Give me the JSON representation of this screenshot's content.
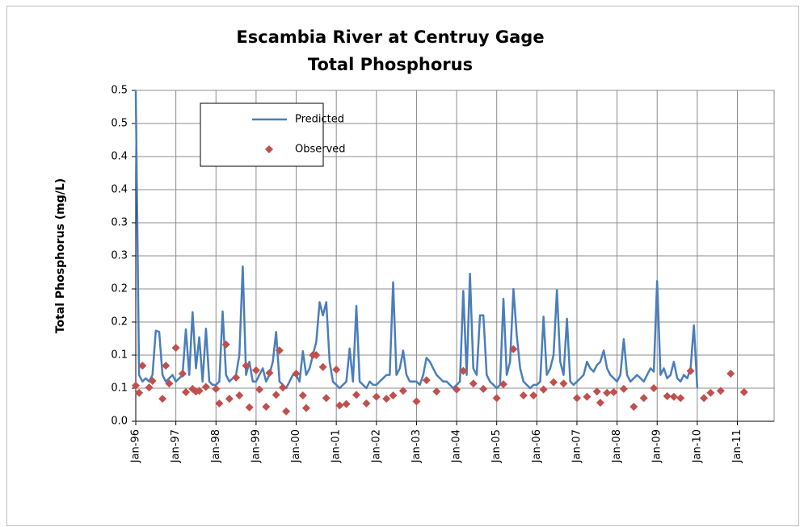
{
  "chart_data": {
    "type": "line",
    "title": "Escambia River at Centruy Gage",
    "subtitle": "Total Phosphorus",
    "y_label": "Total Phosphorus (mg/L)",
    "xlim": [
      "1996-01",
      "2011-12"
    ],
    "xticks": [
      {
        "value": "1996-01",
        "label": "Jan-96"
      },
      {
        "value": "1997-01",
        "label": "Jan-97"
      },
      {
        "value": "1998-01",
        "label": "Jan-98"
      },
      {
        "value": "1999-01",
        "label": "Jan-99"
      },
      {
        "value": "2000-01",
        "label": "Jan-00"
      },
      {
        "value": "2001-01",
        "label": "Jan-01"
      },
      {
        "value": "2002-01",
        "label": "Jan-02"
      },
      {
        "value": "2003-01",
        "label": "Jan-03"
      },
      {
        "value": "2004-01",
        "label": "Jan-04"
      },
      {
        "value": "2005-01",
        "label": "Jan-05"
      },
      {
        "value": "2006-01",
        "label": "Jan-06"
      },
      {
        "value": "2007-01",
        "label": "Jan-07"
      },
      {
        "value": "2008-01",
        "label": "Jan-08"
      },
      {
        "value": "2009-01",
        "label": "Jan-09"
      },
      {
        "value": "2010-01",
        "label": "Jan-10"
      },
      {
        "value": "2011-01",
        "label": "Jan-11"
      }
    ],
    "ylim": [
      0,
      0.5
    ],
    "yticks": [
      {
        "value": 0,
        "label": "0.0"
      },
      {
        "value": 0.05,
        "label": "0.1"
      },
      {
        "value": 0.1,
        "label": "0.1"
      },
      {
        "value": 0.15,
        "label": "0.2"
      },
      {
        "value": 0.2,
        "label": "0.2"
      },
      {
        "value": 0.25,
        "label": "0.3"
      },
      {
        "value": 0.3,
        "label": "0.3"
      },
      {
        "value": 0.35,
        "label": "0.4"
      },
      {
        "value": 0.4,
        "label": "0.4"
      },
      {
        "value": 0.45,
        "label": "0.5"
      },
      {
        "value": 0.5,
        "label": "0.5"
      }
    ],
    "grid": true,
    "legend": "upper left",
    "series": [
      {
        "name": "Predicted",
        "type": "line",
        "color": "#4a7ebb",
        "x": [
          "1996-01",
          "1996-02",
          "1996-03",
          "1996-04",
          "1996-05",
          "1996-06",
          "1996-07",
          "1996-08",
          "1996-09",
          "1996-10",
          "1996-11",
          "1996-12",
          "1997-01",
          "1997-02",
          "1997-03",
          "1997-04",
          "1997-05",
          "1997-06",
          "1997-07",
          "1997-08",
          "1997-09",
          "1997-10",
          "1997-11",
          "1997-12",
          "1998-01",
          "1998-02",
          "1998-03",
          "1998-04",
          "1998-05",
          "1998-06",
          "1998-07",
          "1998-08",
          "1998-09",
          "1998-10",
          "1998-11",
          "1998-12",
          "1999-01",
          "1999-02",
          "1999-03",
          "1999-04",
          "1999-05",
          "1999-06",
          "1999-07",
          "1999-08",
          "1999-09",
          "1999-10",
          "1999-11",
          "1999-12",
          "2000-01",
          "2000-02",
          "2000-03",
          "2000-04",
          "2000-05",
          "2000-06",
          "2000-07",
          "2000-08",
          "2000-09",
          "2000-10",
          "2000-11",
          "2000-12",
          "2001-01",
          "2001-02",
          "2001-03",
          "2001-04",
          "2001-05",
          "2001-06",
          "2001-07",
          "2001-08",
          "2001-09",
          "2001-10",
          "2001-11",
          "2001-12",
          "2002-01",
          "2002-02",
          "2002-03",
          "2002-04",
          "2002-05",
          "2002-06",
          "2002-07",
          "2002-08",
          "2002-09",
          "2002-10",
          "2002-11",
          "2002-12",
          "2003-01",
          "2003-02",
          "2003-03",
          "2003-04",
          "2003-05",
          "2003-06",
          "2003-07",
          "2003-08",
          "2003-09",
          "2003-10",
          "2003-11",
          "2003-12",
          "2004-01",
          "2004-02",
          "2004-03",
          "2004-04",
          "2004-05",
          "2004-06",
          "2004-07",
          "2004-08",
          "2004-09",
          "2004-10",
          "2004-11",
          "2004-12",
          "2005-01",
          "2005-02",
          "2005-03",
          "2005-04",
          "2005-05",
          "2005-06",
          "2005-07",
          "2005-08",
          "2005-09",
          "2005-10",
          "2005-11",
          "2005-12",
          "2006-01",
          "2006-02",
          "2006-03",
          "2006-04",
          "2006-05",
          "2006-06",
          "2006-07",
          "2006-08",
          "2006-09",
          "2006-10",
          "2006-11",
          "2006-12",
          "2007-01",
          "2007-02",
          "2007-03",
          "2007-04",
          "2007-05",
          "2007-06",
          "2007-07",
          "2007-08",
          "2007-09",
          "2007-10",
          "2007-11",
          "2007-12",
          "2008-01",
          "2008-02",
          "2008-03",
          "2008-04",
          "2008-05",
          "2008-06",
          "2008-07",
          "2008-08",
          "2008-09",
          "2008-10",
          "2008-11",
          "2008-12",
          "2009-01",
          "2009-02",
          "2009-03",
          "2009-04",
          "2009-05",
          "2009-06",
          "2009-07",
          "2009-08",
          "2009-09",
          "2009-10",
          "2009-11",
          "2009-12",
          "2010-01"
        ],
        "values": [
          0.5,
          0.07,
          0.06,
          0.065,
          0.06,
          0.07,
          0.137,
          0.135,
          0.07,
          0.06,
          0.065,
          0.07,
          0.06,
          0.065,
          0.07,
          0.139,
          0.07,
          0.165,
          0.08,
          0.127,
          0.06,
          0.14,
          0.06,
          0.055,
          0.055,
          0.06,
          0.166,
          0.07,
          0.06,
          0.065,
          0.07,
          0.1,
          0.234,
          0.07,
          0.09,
          0.06,
          0.06,
          0.07,
          0.08,
          0.06,
          0.07,
          0.09,
          0.135,
          0.06,
          0.055,
          0.05,
          0.06,
          0.07,
          0.07,
          0.06,
          0.106,
          0.07,
          0.08,
          0.1,
          0.12,
          0.18,
          0.16,
          0.18,
          0.09,
          0.06,
          0.055,
          0.05,
          0.055,
          0.06,
          0.11,
          0.06,
          0.174,
          0.06,
          0.055,
          0.05,
          0.06,
          0.055,
          0.055,
          0.06,
          0.065,
          0.07,
          0.07,
          0.21,
          0.07,
          0.08,
          0.107,
          0.07,
          0.06,
          0.06,
          0.06,
          0.055,
          0.07,
          0.096,
          0.09,
          0.08,
          0.07,
          0.065,
          0.06,
          0.06,
          0.055,
          0.05,
          0.055,
          0.06,
          0.197,
          0.07,
          0.223,
          0.08,
          0.07,
          0.16,
          0.16,
          0.07,
          0.06,
          0.055,
          0.05,
          0.055,
          0.185,
          0.07,
          0.09,
          0.2,
          0.13,
          0.08,
          0.06,
          0.055,
          0.05,
          0.055,
          0.055,
          0.06,
          0.158,
          0.07,
          0.08,
          0.1,
          0.198,
          0.09,
          0.07,
          0.155,
          0.06,
          0.055,
          0.06,
          0.065,
          0.07,
          0.09,
          0.08,
          0.075,
          0.085,
          0.09,
          0.107,
          0.08,
          0.07,
          0.065,
          0.06,
          0.07,
          0.124,
          0.07,
          0.06,
          0.065,
          0.07,
          0.065,
          0.06,
          0.07,
          0.08,
          0.075,
          0.212,
          0.07,
          0.08,
          0.065,
          0.07,
          0.09,
          0.065,
          0.06,
          0.07,
          0.065,
          0.08,
          0.145,
          0.05
        ]
      },
      {
        "name": "Observed",
        "type": "scatter",
        "color": "#c0504d",
        "x": [
          "1996-01",
          "1996-02",
          "1996-03",
          "1996-05",
          "1996-06",
          "1996-09",
          "1996-10",
          "1996-11",
          "1997-01",
          "1997-03",
          "1997-04",
          "1997-06",
          "1997-07",
          "1997-08",
          "1997-10",
          "1998-01",
          "1998-02",
          "1998-04",
          "1998-05",
          "1998-07",
          "1998-08",
          "1998-10",
          "1998-11",
          "1999-01",
          "1999-02",
          "1999-04",
          "1999-05",
          "1999-07",
          "1999-08",
          "1999-09",
          "1999-10",
          "2000-01",
          "2000-03",
          "2000-04",
          "2000-06",
          "2000-07",
          "2000-09",
          "2000-10",
          "2001-01",
          "2001-02",
          "2001-04",
          "2001-07",
          "2001-10",
          "2002-01",
          "2002-04",
          "2002-06",
          "2002-09",
          "2003-01",
          "2003-04",
          "2003-07",
          "2004-01",
          "2004-03",
          "2004-06",
          "2004-09",
          "2005-01",
          "2005-03",
          "2005-06",
          "2005-09",
          "2005-12",
          "2006-03",
          "2006-06",
          "2006-09",
          "2007-01",
          "2007-04",
          "2007-07",
          "2007-08",
          "2007-10",
          "2007-12",
          "2008-03",
          "2008-06",
          "2008-09",
          "2008-12",
          "2009-04",
          "2009-06",
          "2009-08",
          "2009-11",
          "2010-03",
          "2010-05",
          "2010-08",
          "2010-11",
          "2011-03"
        ],
        "values": [
          0.054,
          0.043,
          0.084,
          0.051,
          0.061,
          0.034,
          0.084,
          0.057,
          0.111,
          0.072,
          0.044,
          0.049,
          0.045,
          0.046,
          0.052,
          0.049,
          0.027,
          0.116,
          0.034,
          0.066,
          0.039,
          0.084,
          0.021,
          0.077,
          0.048,
          0.022,
          0.073,
          0.04,
          0.107,
          0.051,
          0.015,
          0.072,
          0.039,
          0.02,
          0.1,
          0.1,
          0.082,
          0.035,
          0.078,
          0.024,
          0.026,
          0.04,
          0.027,
          0.037,
          0.034,
          0.039,
          0.046,
          0.03,
          0.062,
          0.045,
          0.048,
          0.076,
          0.057,
          0.049,
          0.035,
          0.056,
          0.109,
          0.039,
          0.039,
          0.048,
          0.059,
          0.057,
          0.035,
          0.037,
          0.045,
          0.028,
          0.043,
          0.044,
          0.049,
          0.022,
          0.035,
          0.05,
          0.038,
          0.037,
          0.035,
          0.076,
          0.035,
          0.043,
          0.046,
          0.072,
          0.044
        ]
      }
    ]
  }
}
